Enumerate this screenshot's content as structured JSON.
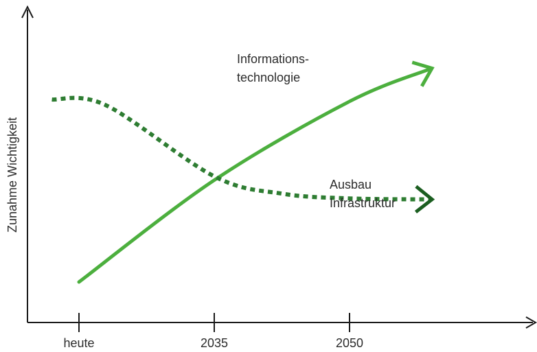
{
  "chart_data": {
    "type": "line",
    "title": "",
    "xlabel": "",
    "ylabel": "Zunahme Wichtigkeit",
    "categories": [
      "heute",
      "2035",
      "2050"
    ],
    "grid": false,
    "series": [
      {
        "name": "Informations-technologie",
        "label_lines": [
          "Informations-",
          "technologie"
        ],
        "style": "solid",
        "color": "#4caf3e",
        "arrow_color": "#4caf3e",
        "points": [
          [
            0,
            0.05
          ],
          [
            1,
            0.58
          ],
          [
            2,
            0.99
          ],
          [
            2.6,
            1.16
          ]
        ]
      },
      {
        "name": "Ausbau Infrastruktur",
        "label_lines": [
          "Ausbau",
          "Infrastruktur"
        ],
        "style": "dotted",
        "color": "#2e7d32",
        "arrow_color": "#1b5e20",
        "points": [
          [
            -0.2,
            1.0
          ],
          [
            0.2,
            0.97
          ],
          [
            1,
            0.6
          ],
          [
            1.5,
            0.51
          ],
          [
            2,
            0.485
          ],
          [
            2.6,
            0.48
          ]
        ]
      }
    ]
  },
  "colors": {
    "axis": "#1a1a1a",
    "solid_green": "#4caf3e",
    "dotted_green": "#2e7d32",
    "arrow_dark": "#1b5e20"
  }
}
